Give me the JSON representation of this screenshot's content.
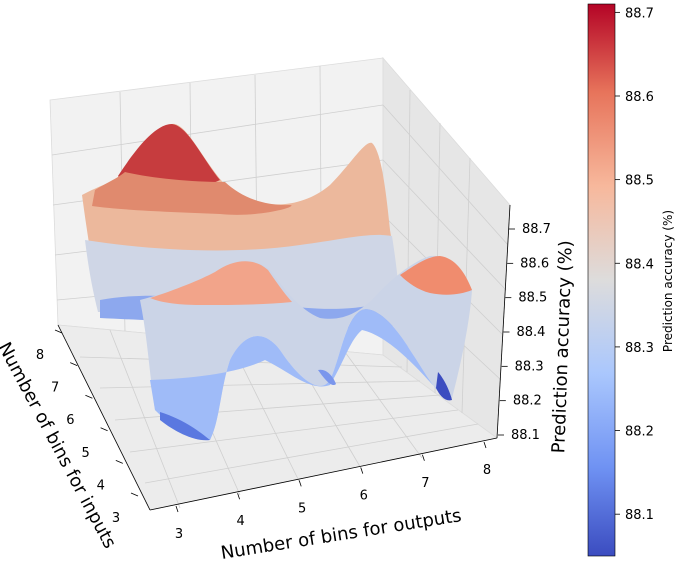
{
  "chart_data": {
    "type": "surface3d",
    "title": "",
    "xlabel": "Number of bins for outputs",
    "ylabel": "Number of bins for inputs",
    "zlabel": "Prediction accuracy (%)",
    "colorbar_label": "Prediction accuracy (%)",
    "colormap": "coolwarm",
    "colormap_stops": [
      "#3b4cc0",
      "#6f92f3",
      "#aac7fd",
      "#dddcdc",
      "#f7b89c",
      "#e7745b",
      "#b40426"
    ],
    "x_ticks": [
      "3",
      "4",
      "5",
      "6",
      "7",
      "8"
    ],
    "y_ticks": [
      "3",
      "4",
      "5",
      "6",
      "7",
      "8"
    ],
    "z_ticks": [
      "88.1",
      "88.2",
      "88.3",
      "88.4",
      "88.5",
      "88.6",
      "88.7"
    ],
    "colorbar_ticks": [
      "88.1",
      "88.2",
      "88.3",
      "88.4",
      "88.5",
      "88.6",
      "88.7"
    ],
    "xlim": [
      3,
      8
    ],
    "ylim": [
      3,
      8
    ],
    "zlim": [
      88.05,
      88.72
    ],
    "colorbar_range": [
      88.05,
      88.71
    ],
    "grid": true,
    "surface_points": [
      {
        "x": 3,
        "y": 3,
        "z": 88.24
      },
      {
        "x": 3.6,
        "y": 3,
        "z": 88.56
      },
      {
        "x": 5,
        "y": 3,
        "z": 88.18
      },
      {
        "x": 6,
        "y": 3,
        "z": 88.2
      },
      {
        "x": 7,
        "y": 3,
        "z": 88.58
      },
      {
        "x": 8,
        "y": 3,
        "z": 88.06
      },
      {
        "x": 3,
        "y": 8,
        "z": 88.5
      },
      {
        "x": 4,
        "y": 8,
        "z": 88.71
      },
      {
        "x": 5.5,
        "y": 8,
        "z": 88.35
      },
      {
        "x": 8,
        "y": 8,
        "z": 88.62
      }
    ]
  }
}
